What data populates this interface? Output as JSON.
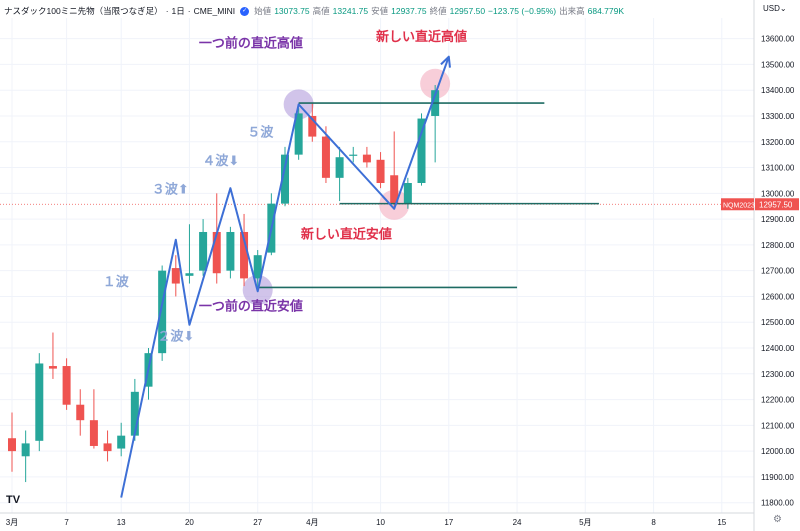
{
  "header": {
    "symbol": "ナスダック100ミニ先物（当限つなぎ足）",
    "interval": "1日",
    "exchange": "CME_MINI",
    "open_label": "始値",
    "open_value": "13073.75",
    "high_label": "高値",
    "high_value": "13241.75",
    "low_label": "安値",
    "low_value": "12937.75",
    "close_label": "終値",
    "close_value": "12957.50",
    "change": "−123.75 (−0.95%)",
    "volume_label": "出来高",
    "volume_value": "684.779K",
    "currency": "USD"
  },
  "logo_text": "TV",
  "icons": [
    "status-dot-icon",
    "tradingview-logo-icon",
    "settings-gear-icon",
    "currency-dropdown-icon"
  ],
  "colors": {
    "up": "#26a69a",
    "down": "#ef5350",
    "wave_line": "#3d6fd6",
    "level_line": "#1e6b63",
    "price_label_bg": "#ef5350",
    "annot_purple": "#7a34a8",
    "annot_red": "#e0304a",
    "annot_wave": "#8fa8d8"
  },
  "chart_data": {
    "type": "candlestick",
    "y_axis": {
      "min": 11760,
      "max": 13680,
      "ticks": [
        11800,
        11900,
        12000,
        12100,
        12200,
        12300,
        12400,
        12500,
        12600,
        12700,
        12800,
        12900,
        13000,
        13100,
        13200,
        13300,
        13400,
        13500,
        13600
      ]
    },
    "x_axis": {
      "ticks": [
        {
          "label": "3月",
          "i": 0
        },
        {
          "label": "7",
          "i": 4
        },
        {
          "label": "13",
          "i": 8
        },
        {
          "label": "20",
          "i": 13
        },
        {
          "label": "27",
          "i": 18
        },
        {
          "label": "4月",
          "i": 22
        },
        {
          "label": "10",
          "i": 27
        },
        {
          "label": "17",
          "i": 32
        },
        {
          "label": "24",
          "i": 37
        },
        {
          "label": "5月",
          "i": 42
        },
        {
          "label": "8",
          "i": 47
        },
        {
          "label": "15",
          "i": 52
        }
      ]
    },
    "candles": [
      {
        "o": 12050,
        "h": 12150,
        "l": 11920,
        "c": 12000
      },
      {
        "o": 11980,
        "h": 12080,
        "l": 11880,
        "c": 12030
      },
      {
        "o": 12040,
        "h": 12380,
        "l": 12000,
        "c": 12340
      },
      {
        "o": 12330,
        "h": 12460,
        "l": 12280,
        "c": 12320
      },
      {
        "o": 12330,
        "h": 12360,
        "l": 12160,
        "c": 12180
      },
      {
        "o": 12180,
        "h": 12240,
        "l": 12060,
        "c": 12120
      },
      {
        "o": 12120,
        "h": 12240,
        "l": 12010,
        "c": 12020
      },
      {
        "o": 12030,
        "h": 12080,
        "l": 11960,
        "c": 12000
      },
      {
        "o": 12010,
        "h": 12110,
        "l": 11980,
        "c": 12060
      },
      {
        "o": 12060,
        "h": 12280,
        "l": 12040,
        "c": 12230
      },
      {
        "o": 12250,
        "h": 12400,
        "l": 12200,
        "c": 12380
      },
      {
        "o": 12380,
        "h": 12720,
        "l": 12350,
        "c": 12700
      },
      {
        "o": 12710,
        "h": 12760,
        "l": 12600,
        "c": 12650
      },
      {
        "o": 12680,
        "h": 12880,
        "l": 12650,
        "c": 12690
      },
      {
        "o": 12700,
        "h": 12900,
        "l": 12680,
        "c": 12850
      },
      {
        "o": 12850,
        "h": 13000,
        "l": 12650,
        "c": 12690
      },
      {
        "o": 12700,
        "h": 12870,
        "l": 12670,
        "c": 12850
      },
      {
        "o": 12850,
        "h": 12920,
        "l": 12640,
        "c": 12670
      },
      {
        "o": 12670,
        "h": 12780,
        "l": 12630,
        "c": 12760
      },
      {
        "o": 12770,
        "h": 13000,
        "l": 12760,
        "c": 12960
      },
      {
        "o": 12960,
        "h": 13180,
        "l": 12950,
        "c": 13150
      },
      {
        "o": 13150,
        "h": 13330,
        "l": 13130,
        "c": 13310
      },
      {
        "o": 13300,
        "h": 13350,
        "l": 13200,
        "c": 13220
      },
      {
        "o": 13220,
        "h": 13260,
        "l": 13040,
        "c": 13060
      },
      {
        "o": 13060,
        "h": 13180,
        "l": 12970,
        "c": 13140
      },
      {
        "o": 13150,
        "h": 13180,
        "l": 13120,
        "c": 13150
      },
      {
        "o": 13150,
        "h": 13180,
        "l": 13100,
        "c": 13120
      },
      {
        "o": 13130,
        "h": 13160,
        "l": 13020,
        "c": 13040
      },
      {
        "o": 13070,
        "h": 13240,
        "l": 12940,
        "c": 12960
      },
      {
        "o": 12960,
        "h": 13060,
        "l": 12940,
        "c": 13040
      },
      {
        "o": 13040,
        "h": 13310,
        "l": 13030,
        "c": 13290
      },
      {
        "o": 13300,
        "h": 13420,
        "l": 13120,
        "c": 13400
      }
    ],
    "horizontal_levels": [
      {
        "price": 13350,
        "i_start": 21,
        "i_end": 39
      },
      {
        "price": 12960,
        "i_start": 24,
        "i_end": 43
      },
      {
        "price": 12635,
        "i_start": 18,
        "i_end": 37
      }
    ],
    "wave_path": [
      {
        "i": 8,
        "p": 11820
      },
      {
        "i": 12,
        "p": 12820
      },
      {
        "i": 13,
        "p": 12490
      },
      {
        "i": 16,
        "p": 13020
      },
      {
        "i": 18,
        "p": 12620
      },
      {
        "i": 21,
        "p": 13345
      },
      {
        "i": 28,
        "p": 12940
      },
      {
        "i": 32,
        "p": 13530
      }
    ],
    "highlight_points": [
      {
        "i": 21,
        "p": 13345,
        "color": "#b9a5de"
      },
      {
        "i": 18,
        "p": 12625,
        "color": "#b9a5de"
      },
      {
        "i": 28,
        "p": 12955,
        "color": "#f4b3c4"
      },
      {
        "i": 31,
        "p": 13425,
        "color": "#f4b3c4"
      }
    ],
    "current_price": {
      "label": "NQM2023",
      "value": "12957.50",
      "price": 12957.5
    },
    "annotations": [
      {
        "text": "一つ前の直近高値",
        "i": 17.5,
        "p": 13565,
        "color": "#7a34a8",
        "size": 13
      },
      {
        "text": "新しい直近高値",
        "i": 30,
        "p": 13590,
        "color": "#e0304a",
        "size": 13
      },
      {
        "text": "新しい直近安値",
        "i": 24.5,
        "p": 12825,
        "color": "#e0304a",
        "size": 13
      },
      {
        "text": "一つ前の直近安値",
        "i": 17.5,
        "p": 12545,
        "color": "#7a34a8",
        "size": 13
      },
      {
        "text": "５波",
        "i": 18.2,
        "p": 13220,
        "color": "#8fa8d8",
        "size": 13
      },
      {
        "text": "４波⬇",
        "i": 15.3,
        "p": 13110,
        "color": "#8fa8d8",
        "size": 13
      },
      {
        "text": "３波⬆",
        "i": 11.6,
        "p": 13000,
        "color": "#8fa8d8",
        "size": 13
      },
      {
        "text": "１波",
        "i": 7.6,
        "p": 12640,
        "color": "#8fa8d8",
        "size": 13
      },
      {
        "text": "２波⬇",
        "i": 12,
        "p": 12430,
        "color": "#8fa8d8",
        "size": 13
      }
    ]
  }
}
